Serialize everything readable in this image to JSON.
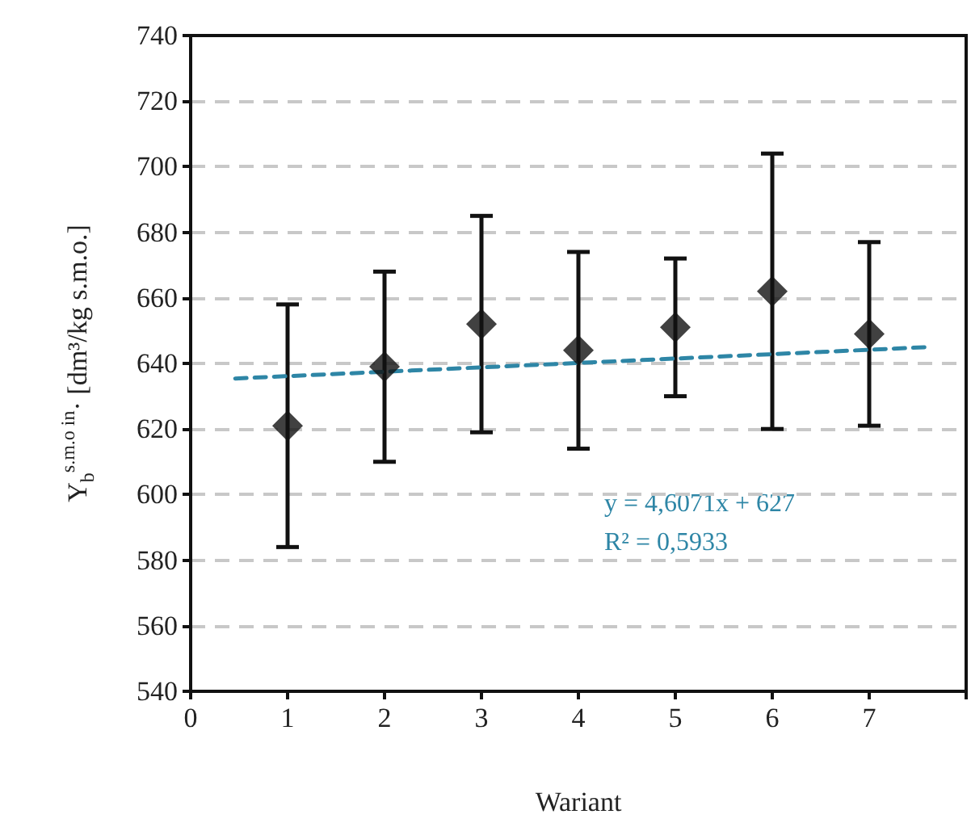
{
  "chart_data": {
    "type": "scatter",
    "xlabel": "Wariant",
    "ylabel": "Y$_{b}$$^{s.m.o in}$· [dm³/kg s.m.o.]",
    "x": [
      1,
      2,
      3,
      4,
      5,
      6,
      7
    ],
    "series": [
      {
        "color": "#111111",
        "marker": "diamond",
        "values": [
          621,
          639,
          652,
          644,
          651,
          662,
          649
        ],
        "errors": [
          [
            584,
            658
          ],
          [
            610,
            668
          ],
          [
            619,
            685
          ],
          [
            614,
            674
          ],
          [
            630,
            672
          ],
          [
            620,
            704
          ],
          [
            621,
            677
          ]
        ]
      },
      {
        "type": "line",
        "color": "#2e86a6",
        "line_style": "dashed",
        "marker": "none",
        "x": [
          0.46,
          7.62
        ],
        "values": [
          635.4,
          645
        ]
      }
    ],
    "annotations": [
      "y = 4,6071x + 627",
      "R² = 0,5933"
    ],
    "xlim": [
      0,
      8
    ],
    "xticks": [
      0,
      1,
      2,
      3,
      4,
      5,
      6,
      7,
      {
        "value": 8,
        "label": null
      }
    ],
    "ylim": [
      540,
      740
    ],
    "yticks": [
      540,
      560,
      580,
      600,
      620,
      640,
      660,
      680,
      700,
      720,
      740
    ],
    "grid": "y"
  }
}
